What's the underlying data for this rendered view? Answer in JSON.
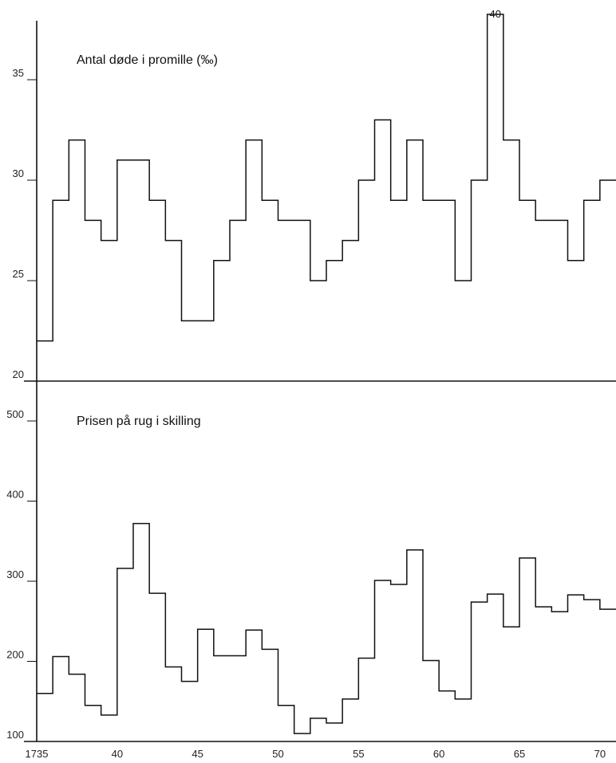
{
  "chart_data": [
    {
      "type": "line",
      "step": true,
      "title": "Antal døde i promille (‰)",
      "annotation": "40",
      "ylim": [
        20,
        38
      ],
      "yticks": [
        20,
        25,
        30,
        35
      ],
      "x": [
        1735,
        1736,
        1737,
        1738,
        1739,
        1740,
        1741,
        1742,
        1743,
        1744,
        1745,
        1746,
        1747,
        1748,
        1749,
        1750,
        1751,
        1752,
        1753,
        1754,
        1755,
        1756,
        1757,
        1758,
        1759,
        1760,
        1761,
        1762,
        1763,
        1764,
        1765,
        1766,
        1767,
        1768,
        1769,
        1770
      ],
      "values": [
        22,
        29,
        32,
        28,
        27,
        31,
        31,
        29,
        27,
        23,
        23,
        26,
        28,
        32,
        29,
        28,
        28,
        25,
        26,
        27,
        30,
        33,
        29,
        32,
        29,
        29,
        25,
        30,
        40,
        32,
        29,
        28,
        28,
        26,
        29,
        30
      ]
    },
    {
      "type": "line",
      "step": true,
      "title": "Prisen på rug i skilling",
      "ylim": [
        100,
        520
      ],
      "yticks": [
        100,
        200,
        300,
        400,
        500
      ],
      "x": [
        1735,
        1736,
        1737,
        1738,
        1739,
        1740,
        1741,
        1742,
        1743,
        1744,
        1745,
        1746,
        1747,
        1748,
        1749,
        1750,
        1751,
        1752,
        1753,
        1754,
        1755,
        1756,
        1757,
        1758,
        1759,
        1760,
        1761,
        1762,
        1763,
        1764,
        1765,
        1766,
        1767,
        1768,
        1769,
        1770
      ],
      "values": [
        160,
        206,
        184,
        145,
        133,
        316,
        372,
        285,
        193,
        175,
        240,
        207,
        207,
        239,
        215,
        145,
        110,
        129,
        123,
        153,
        204,
        301,
        296,
        339,
        201,
        163,
        153,
        274,
        284,
        243,
        329,
        268,
        262,
        283,
        277,
        265
      ]
    }
  ],
  "x_axis": {
    "xlim": [
      1735,
      1771
    ],
    "ticks": [
      {
        "value": 1735,
        "label": "1735"
      },
      {
        "value": 1740,
        "label": "40"
      },
      {
        "value": 1745,
        "label": "45"
      },
      {
        "value": 1750,
        "label": "50"
      },
      {
        "value": 1755,
        "label": "55"
      },
      {
        "value": 1760,
        "label": "60"
      },
      {
        "value": 1765,
        "label": "65"
      },
      {
        "value": 1770,
        "label": "70"
      }
    ]
  },
  "colors": {
    "line": "#111111"
  }
}
